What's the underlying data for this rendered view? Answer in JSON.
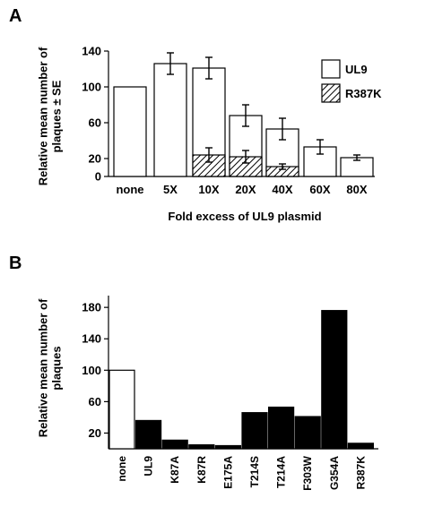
{
  "chart_data": [
    {
      "panel": "A",
      "type": "bar",
      "categories": [
        "none",
        "5X",
        "10X",
        "20X",
        "40X",
        "60X",
        "80X"
      ],
      "series": [
        {
          "name": "UL9",
          "values": [
            100,
            126,
            121,
            68,
            53,
            33,
            21
          ],
          "errors": [
            null,
            12,
            12,
            12,
            12,
            8,
            3
          ]
        },
        {
          "name": "R387K",
          "values": [
            null,
            null,
            24,
            22,
            11,
            null,
            null
          ],
          "errors": [
            null,
            null,
            8,
            7,
            3,
            null,
            null
          ]
        }
      ],
      "ylabel": "Relative mean number of plaques ± SE",
      "xlabel": "Fold excess of UL9 plasmid",
      "yticks": [
        0,
        20,
        60,
        100,
        140
      ],
      "ylim": [
        0,
        140
      ],
      "legend": "top-right",
      "colors": {
        "UL9": "#ffffff",
        "R387K": "hatched",
        "stroke": "#000000"
      }
    },
    {
      "panel": "B",
      "type": "bar",
      "categories": [
        "none",
        "UL9",
        "K87A",
        "K87R",
        "E175A",
        "T214S",
        "T214A",
        "F303W",
        "G354A",
        "R387K"
      ],
      "values": [
        100,
        36,
        11,
        5,
        4,
        46,
        53,
        41,
        176,
        7
      ],
      "ylabel": "Relative mean number of plaques",
      "xlabel": "",
      "yticks": [
        20,
        60,
        100,
        140,
        180
      ],
      "ylim": [
        0,
        195
      ],
      "colors": {
        "none": "#ffffff",
        "others": "#000000",
        "stroke": "#000000"
      }
    }
  ]
}
